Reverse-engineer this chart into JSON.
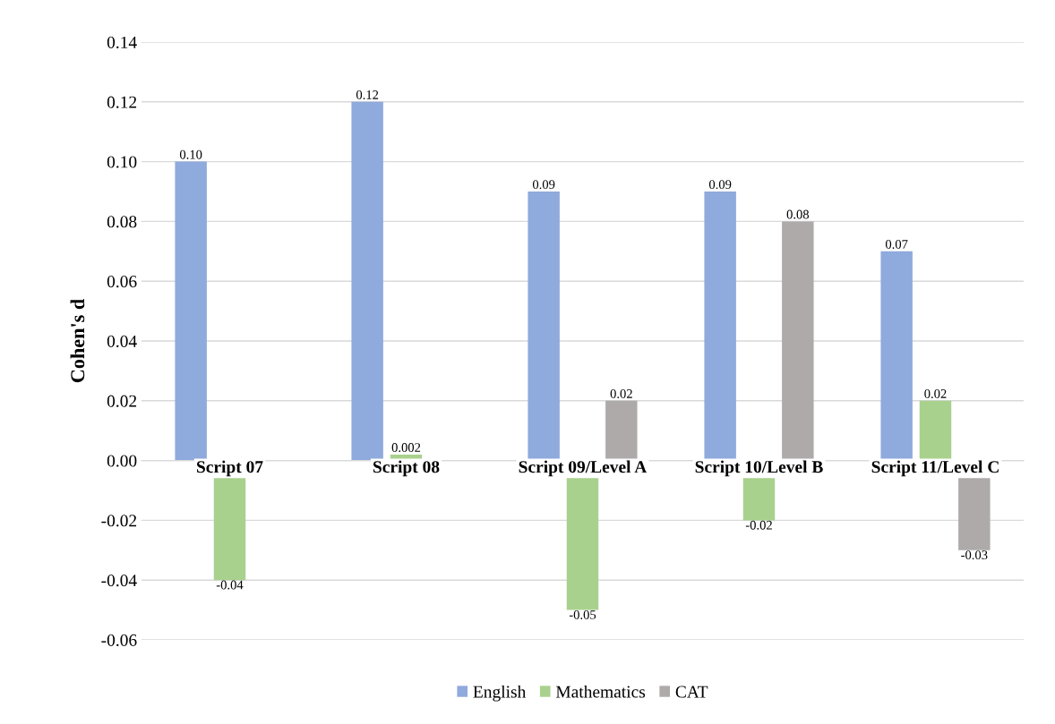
{
  "chart_data": {
    "type": "bar",
    "ylabel": "Cohen's d",
    "categories": [
      "Script 07",
      "Script 08",
      "Script 09/Level A",
      "Script 10/Level B",
      "Script 11/Level C"
    ],
    "series": [
      {
        "name": "English",
        "color": "#8faadc",
        "values": [
          0.1,
          0.12,
          0.09,
          0.09,
          0.07
        ],
        "value_labels": [
          "0.10",
          "0.12",
          "0.09",
          "0.09",
          "0.07"
        ]
      },
      {
        "name": "Mathematics",
        "color": "#a9d18e",
        "values": [
          -0.04,
          0.002,
          -0.05,
          -0.02,
          0.02
        ],
        "value_labels": [
          "-0.04",
          "0.002",
          "-0.05",
          "-0.02",
          "0.02"
        ]
      },
      {
        "name": "CAT",
        "color": "#aeaaaa",
        "values": [
          null,
          null,
          0.02,
          0.08,
          -0.03
        ],
        "value_labels": [
          null,
          null,
          "0.02",
          "0.08",
          "-0.03"
        ]
      }
    ],
    "ylim": [
      -0.06,
      0.14
    ],
    "yticks": [
      {
        "value": -0.06,
        "label": "-0.06"
      },
      {
        "value": -0.04,
        "label": "-0.04"
      },
      {
        "value": -0.02,
        "label": "-0.02"
      },
      {
        "value": 0,
        "label": "0.00"
      },
      {
        "value": 0.02,
        "label": "0.02"
      },
      {
        "value": 0.04,
        "label": "0.04"
      },
      {
        "value": 0.06,
        "label": "0.06"
      },
      {
        "value": 0.08,
        "label": "0.08"
      },
      {
        "value": 0.1,
        "label": "0.10"
      },
      {
        "value": 0.12,
        "label": "0.12"
      },
      {
        "value": 0.14,
        "label": "0.14"
      }
    ],
    "grid": "y",
    "legend": "bottom"
  }
}
